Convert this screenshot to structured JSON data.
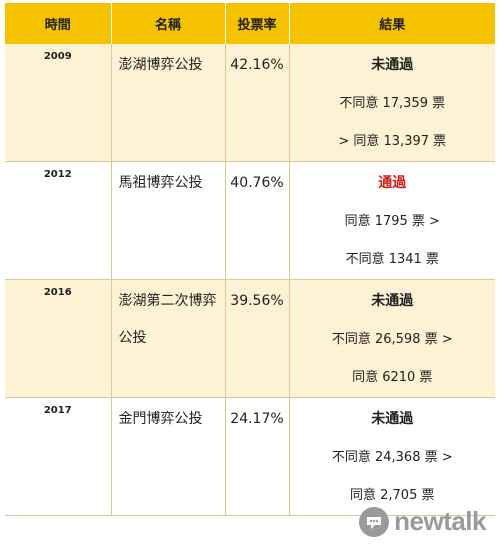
{
  "headers": {
    "time": "時間",
    "name": "名稱",
    "rate": "投票率",
    "result": "結果"
  },
  "rows": [
    {
      "year": "2009",
      "name": "澎湖博弈公投",
      "rate": "42.16%",
      "status": "未通過",
      "line1": "不同意 17,359 票",
      "line2": "> 同意 13,397 票"
    },
    {
      "year": "2012",
      "name": "馬祖博弈公投",
      "rate": "40.76%",
      "status": "通過",
      "line1": "同意 1795 票 >",
      "line2": "不同意 1341 票"
    },
    {
      "year": "2016",
      "name": "澎湖第二次博弈公投",
      "rate": "39.56%",
      "status": "未通過",
      "line1": "不同意 26,598 票 >",
      "line2": "同意 6210 票"
    },
    {
      "year": "2017",
      "name": "金門博弈公投",
      "rate": "24.17%",
      "status": "未通過",
      "line1": "不同意 24,368 票 >",
      "line2": "同意 2,705 票"
    }
  ],
  "colors": {
    "header_bg": "#f5c200",
    "alt_row_bg": "#fdf2d4",
    "pass_text": "#d01c1c",
    "watermark": "#9a9a9a"
  },
  "watermark": {
    "text": "newtalk",
    "icon": "newtalk-logo-icon"
  }
}
